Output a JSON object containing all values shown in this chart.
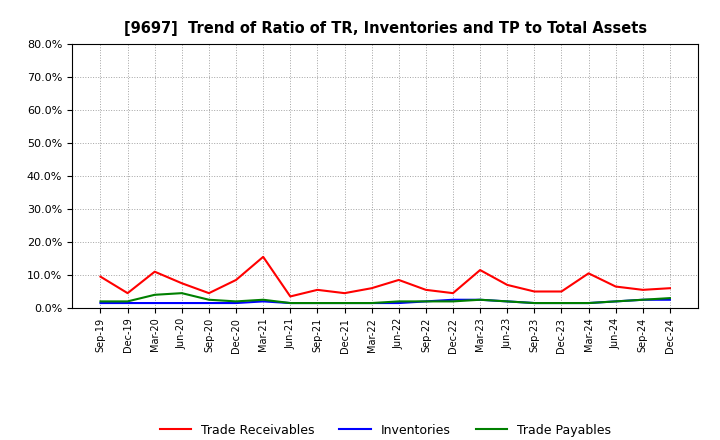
{
  "title": "[9697]  Trend of Ratio of TR, Inventories and TP to Total Assets",
  "x_labels": [
    "Sep-19",
    "Dec-19",
    "Mar-20",
    "Jun-20",
    "Sep-20",
    "Dec-20",
    "Mar-21",
    "Jun-21",
    "Sep-21",
    "Dec-21",
    "Mar-22",
    "Jun-22",
    "Sep-22",
    "Dec-22",
    "Mar-23",
    "Jun-23",
    "Sep-23",
    "Dec-23",
    "Mar-24",
    "Jun-24",
    "Sep-24",
    "Dec-24"
  ],
  "trade_receivables": [
    9.5,
    4.5,
    11.0,
    7.5,
    4.5,
    8.5,
    15.5,
    3.5,
    5.5,
    4.5,
    6.0,
    8.5,
    5.5,
    4.5,
    11.5,
    7.0,
    5.0,
    5.0,
    10.5,
    6.5,
    5.5,
    6.0
  ],
  "inventories": [
    1.5,
    1.5,
    1.5,
    1.5,
    1.5,
    1.5,
    2.0,
    1.5,
    1.5,
    1.5,
    1.5,
    1.5,
    2.0,
    2.5,
    2.5,
    2.0,
    1.5,
    1.5,
    1.5,
    2.0,
    2.5,
    2.5
  ],
  "trade_payables": [
    2.0,
    2.0,
    4.0,
    4.5,
    2.5,
    2.0,
    2.5,
    1.5,
    1.5,
    1.5,
    1.5,
    2.0,
    2.0,
    2.0,
    2.5,
    2.0,
    1.5,
    1.5,
    1.5,
    2.0,
    2.5,
    3.0
  ],
  "color_tr": "#FF0000",
  "color_inv": "#0000FF",
  "color_tp": "#008000",
  "ylim": [
    0,
    80
  ],
  "yticks": [
    0,
    10,
    20,
    30,
    40,
    50,
    60,
    70,
    80
  ],
  "ytick_labels": [
    "0.0%",
    "10.0%",
    "20.0%",
    "30.0%",
    "40.0%",
    "50.0%",
    "60.0%",
    "70.0%",
    "80.0%"
  ],
  "legend_tr": "Trade Receivables",
  "legend_inv": "Inventories",
  "legend_tp": "Trade Payables",
  "bg_color": "#FFFFFF",
  "plot_bg_color": "#FFFFFF",
  "grid_color": "#999999",
  "linewidth": 1.5
}
